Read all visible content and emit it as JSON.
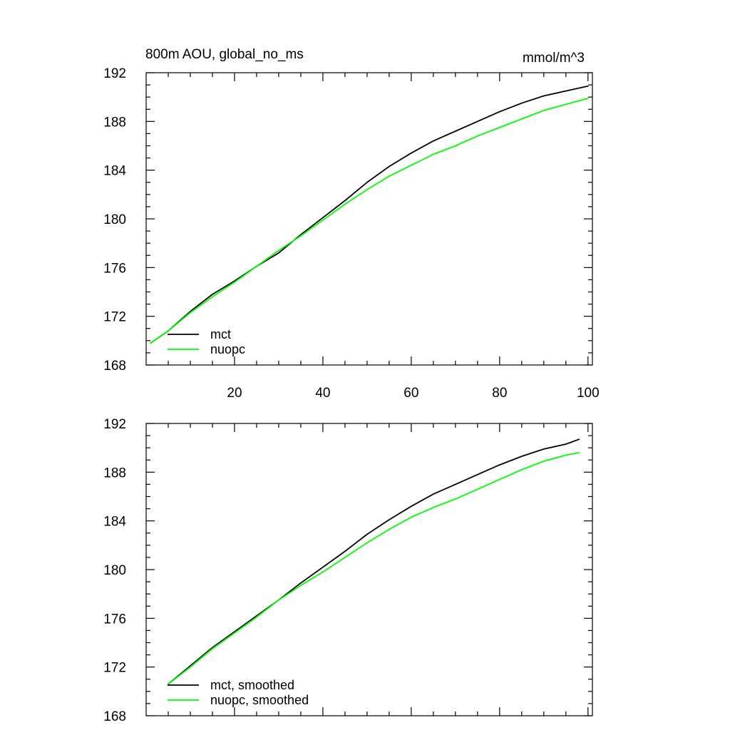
{
  "colors": {
    "mct": "#000000",
    "nuopc": "#00ff00",
    "frame": "#000000",
    "background": "#ffffff"
  },
  "chart_data": [
    {
      "type": "line",
      "title": "800m AOU, global_no_ms",
      "units_label": "mmol/m^3",
      "xlim": [
        0,
        101
      ],
      "ylim": [
        168,
        192
      ],
      "x_ticks": [
        20,
        40,
        60,
        80,
        100
      ],
      "x_tick_labels": [
        "20",
        "40",
        "60",
        "80",
        "100"
      ],
      "y_ticks": [
        168,
        172,
        176,
        180,
        184,
        188,
        192
      ],
      "y_tick_labels": [
        "168",
        "172",
        "176",
        "180",
        "184",
        "188",
        "192"
      ],
      "grid": false,
      "legend_position": "bottom-left",
      "series": [
        {
          "name": "mct",
          "color": "#000000",
          "x": [
            1,
            5,
            10,
            15,
            20,
            25,
            30,
            35,
            40,
            45,
            50,
            55,
            60,
            65,
            70,
            75,
            80,
            85,
            90,
            95,
            100
          ],
          "values": [
            169.8,
            170.8,
            172.4,
            173.8,
            174.9,
            176.1,
            177.2,
            178.7,
            180.1,
            181.5,
            183.0,
            184.3,
            185.4,
            186.4,
            187.2,
            188.0,
            188.8,
            189.5,
            190.1,
            190.5,
            190.9
          ]
        },
        {
          "name": "nuopc",
          "color": "#00ff00",
          "x": [
            1,
            5,
            10,
            15,
            20,
            25,
            30,
            35,
            40,
            45,
            50,
            55,
            60,
            65,
            70,
            75,
            80,
            85,
            90,
            95,
            100
          ],
          "values": [
            169.8,
            170.8,
            172.3,
            173.6,
            174.8,
            176.1,
            177.4,
            178.6,
            179.9,
            181.2,
            182.4,
            183.5,
            184.4,
            185.3,
            186.0,
            186.8,
            187.5,
            188.2,
            188.9,
            189.4,
            189.9
          ]
        }
      ]
    },
    {
      "type": "line",
      "title": "",
      "xlim": [
        0,
        101
      ],
      "ylim": [
        168,
        192
      ],
      "x_ticks": [
        20,
        40,
        60,
        80,
        100
      ],
      "y_ticks": [
        168,
        172,
        176,
        180,
        184,
        188,
        192
      ],
      "y_tick_labels": [
        "168",
        "172",
        "176",
        "180",
        "184",
        "188",
        "192"
      ],
      "grid": false,
      "legend_position": "bottom-left",
      "series": [
        {
          "name": "mct, smoothed",
          "color": "#000000",
          "x": [
            5,
            10,
            15,
            20,
            25,
            30,
            35,
            40,
            45,
            50,
            55,
            60,
            65,
            70,
            75,
            80,
            85,
            90,
            95,
            98
          ],
          "values": [
            170.6,
            172.1,
            173.6,
            174.9,
            176.2,
            177.5,
            178.9,
            180.2,
            181.5,
            182.9,
            184.1,
            185.2,
            186.2,
            187.0,
            187.8,
            188.6,
            189.3,
            189.9,
            190.3,
            190.7
          ]
        },
        {
          "name": "nuopc, smoothed",
          "color": "#00ff00",
          "x": [
            5,
            10,
            15,
            20,
            25,
            30,
            35,
            40,
            45,
            50,
            55,
            60,
            65,
            70,
            75,
            80,
            85,
            90,
            95,
            98
          ],
          "values": [
            170.6,
            172.0,
            173.5,
            174.8,
            176.1,
            177.5,
            178.7,
            179.8,
            181.0,
            182.2,
            183.3,
            184.3,
            185.1,
            185.8,
            186.6,
            187.4,
            188.2,
            188.9,
            189.4,
            189.6
          ]
        }
      ]
    }
  ]
}
